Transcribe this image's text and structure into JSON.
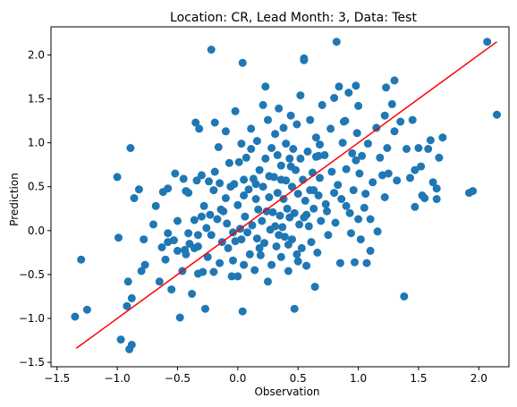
{
  "chart_data": {
    "type": "scatter",
    "title": "Location: CR, Lead Month: 3, Data: Test",
    "xlabel": "Observation",
    "ylabel": "Prediction",
    "xlim": [
      -1.55,
      2.25
    ],
    "ylim": [
      -1.55,
      2.32
    ],
    "xticks": [
      -1.5,
      -1.0,
      -0.5,
      0.0,
      0.5,
      1.0,
      1.5,
      2.0
    ],
    "xtick_labels": [
      "−1.5",
      "−1.0",
      "−0.5",
      "0.0",
      "0.5",
      "1.0",
      "1.5",
      "2.0"
    ],
    "yticks": [
      -1.5,
      -1.0,
      -0.5,
      0.0,
      0.5,
      1.0,
      1.5,
      2.0
    ],
    "ytick_labels": [
      "−1.5",
      "−1.0",
      "−0.5",
      "0.0",
      "0.5",
      "1.0",
      "1.5",
      "2.0"
    ],
    "grid": false,
    "colors": {
      "points": "#1f77b4",
      "line": "#ff0000"
    },
    "fit_line": {
      "x": [
        -1.34,
        2.15
      ],
      "y": [
        -1.34,
        2.15
      ]
    },
    "points": [
      [
        -1.35,
        -0.98
      ],
      [
        -1.3,
        -0.33
      ],
      [
        -1.25,
        -0.9
      ],
      [
        -1.0,
        0.61
      ],
      [
        -0.99,
        -0.08
      ],
      [
        -0.97,
        -1.24
      ],
      [
        -0.92,
        -0.86
      ],
      [
        -0.9,
        -1.35
      ],
      [
        -0.88,
        -1.3
      ],
      [
        -0.91,
        -0.58
      ],
      [
        -0.89,
        0.94
      ],
      [
        -0.88,
        -0.77
      ],
      [
        -0.86,
        0.37
      ],
      [
        -0.82,
        0.47
      ],
      [
        -0.8,
        -0.46
      ],
      [
        -0.78,
        -0.1
      ],
      [
        -0.77,
        -0.39
      ],
      [
        -0.7,
        0.07
      ],
      [
        -0.68,
        0.28
      ],
      [
        -0.65,
        -0.58
      ],
      [
        -0.63,
        -0.19
      ],
      [
        -0.62,
        0.44
      ],
      [
        -0.6,
        -0.33
      ],
      [
        -0.58,
        0.48
      ],
      [
        -0.58,
        -0.03
      ],
      [
        -0.55,
        -0.67
      ],
      [
        -0.53,
        -0.11
      ],
      [
        -0.52,
        0.65
      ],
      [
        -0.5,
        -0.23
      ],
      [
        -0.5,
        0.11
      ],
      [
        -0.48,
        -0.99
      ],
      [
        -0.46,
        -0.46
      ],
      [
        -0.45,
        0.59
      ],
      [
        -0.44,
        -0.22
      ],
      [
        -0.43,
        0.45
      ],
      [
        -0.43,
        -0.27
      ],
      [
        -0.41,
        0.43
      ],
      [
        -0.41,
        -0.03
      ],
      [
        -0.4,
        -0.15
      ],
      [
        -0.38,
        -0.72
      ],
      [
        -0.36,
        0.12
      ],
      [
        -0.35,
        1.23
      ],
      [
        -0.34,
        0.57
      ],
      [
        -0.33,
        -0.18
      ],
      [
        -0.33,
        -0.49
      ],
      [
        -0.32,
        1.16
      ],
      [
        -0.3,
        0.63
      ],
      [
        -0.3,
        0.16
      ],
      [
        -0.29,
        -0.47
      ],
      [
        -0.28,
        0.28
      ],
      [
        -0.27,
        -0.89
      ],
      [
        -0.26,
        0.03
      ],
      [
        -0.25,
        -0.3
      ],
      [
        -0.24,
        0.56
      ],
      [
        -0.23,
        0.18
      ],
      [
        -0.22,
        -0.05
      ],
      [
        -0.22,
        2.06
      ],
      [
        -0.2,
        0.46
      ],
      [
        -0.2,
        -0.47
      ],
      [
        -0.19,
        1.23
      ],
      [
        -0.17,
        0.13
      ],
      [
        -0.16,
        0.95
      ],
      [
        -0.15,
        0.54
      ],
      [
        -0.15,
        -0.37
      ],
      [
        -0.13,
        -0.13
      ],
      [
        -0.12,
        0.22
      ],
      [
        -0.1,
        0.37
      ],
      [
        -0.1,
        1.13
      ],
      [
        -0.09,
        0.08
      ],
      [
        -0.08,
        -0.2
      ],
      [
        -0.07,
        0.77
      ],
      [
        -0.06,
        0.5
      ],
      [
        -0.05,
        -0.52
      ],
      [
        -0.04,
        -0.34
      ],
      [
        -0.03,
        0.53
      ],
      [
        -0.02,
        1.36
      ],
      [
        -0.02,
        -0.12
      ],
      [
        0.0,
        0.29
      ],
      [
        0.0,
        -0.52
      ],
      [
        0.01,
        0.78
      ],
      [
        0.02,
        0.02
      ],
      [
        0.03,
        0.99
      ],
      [
        0.03,
        -0.1
      ],
      [
        0.04,
        1.91
      ],
      [
        0.04,
        -0.92
      ],
      [
        0.05,
        0.58
      ],
      [
        0.05,
        -0.39
      ],
      [
        0.06,
        0.16
      ],
      [
        0.07,
        0.83
      ],
      [
        0.08,
        -0.02
      ],
      [
        0.09,
        0.47
      ],
      [
        0.1,
        -0.27
      ],
      [
        0.11,
        1.16
      ],
      [
        0.12,
        0.06
      ],
      [
        0.13,
        0.59
      ],
      [
        0.14,
        -0.45
      ],
      [
        0.15,
        0.36
      ],
      [
        0.16,
        1.02
      ],
      [
        0.16,
        -0.09
      ],
      [
        0.17,
        0.24
      ],
      [
        0.18,
        0.69
      ],
      [
        0.19,
        -0.28
      ],
      [
        0.2,
        0.11
      ],
      [
        0.21,
        1.43
      ],
      [
        0.21,
        0.5
      ],
      [
        0.22,
        -0.14
      ],
      [
        0.23,
        0.82
      ],
      [
        0.23,
        1.64
      ],
      [
        0.24,
        0.22
      ],
      [
        0.25,
        -0.58
      ],
      [
        0.25,
        1.26
      ],
      [
        0.26,
        0.38
      ],
      [
        0.27,
        0.01
      ],
      [
        0.28,
        0.94
      ],
      [
        0.28,
        -0.39
      ],
      [
        0.29,
        0.21
      ],
      [
        0.3,
        0.61
      ],
      [
        0.31,
        1.1
      ],
      [
        0.32,
        -0.18
      ],
      [
        0.33,
        0.43
      ],
      [
        0.33,
        0.86
      ],
      [
        0.34,
        1.39
      ],
      [
        0.35,
        0.17
      ],
      [
        0.36,
        -0.3
      ],
      [
        0.36,
        0.74
      ],
      [
        0.37,
        0.04
      ],
      [
        0.38,
        1.17
      ],
      [
        0.38,
        0.36
      ],
      [
        0.39,
        -0.07
      ],
      [
        0.4,
        0.57
      ],
      [
        0.4,
        0.99
      ],
      [
        0.41,
        0.25
      ],
      [
        0.42,
        -0.46
      ],
      [
        0.43,
        0.82
      ],
      [
        0.43,
        0.15
      ],
      [
        0.44,
        1.31
      ],
      [
        0.45,
        -0.1
      ],
      [
        0.45,
        0.5
      ],
      [
        0.46,
        0.93
      ],
      [
        0.47,
        0.2
      ],
      [
        0.47,
        -0.89
      ],
      [
        0.48,
        0.69
      ],
      [
        0.49,
        1.21
      ],
      [
        0.49,
        -0.27
      ],
      [
        0.5,
        0.42
      ],
      [
        0.51,
        0.07
      ],
      [
        0.52,
        0.82
      ],
      [
        0.52,
        1.54
      ],
      [
        0.53,
        -0.2
      ],
      [
        0.54,
        0.58
      ],
      [
        0.55,
        1.96
      ],
      [
        0.55,
        0.15
      ],
      [
        0.55,
        1.94
      ],
      [
        0.56,
        0.34
      ],
      [
        0.57,
        -0.4
      ],
      [
        0.58,
        0.9
      ],
      [
        0.59,
        0.05
      ],
      [
        0.6,
        0.46
      ],
      [
        0.6,
        1.26
      ],
      [
        0.61,
        -0.13
      ],
      [
        0.62,
        0.66
      ],
      [
        0.63,
        0.25
      ],
      [
        0.64,
        -0.64
      ],
      [
        0.65,
        0.84
      ],
      [
        0.65,
        1.06
      ],
      [
        0.66,
        -0.25
      ],
      [
        0.67,
        0.4
      ],
      [
        0.68,
        0.6
      ],
      [
        0.69,
        0.11
      ],
      [
        0.7,
        1.43
      ],
      [
        0.72,
        0.86
      ],
      [
        0.73,
        0.3
      ],
      [
        0.75,
        -0.05
      ],
      [
        0.77,
        1.16
      ],
      [
        0.78,
        0.67
      ],
      [
        0.8,
        1.51
      ],
      [
        0.81,
        0.09
      ],
      [
        0.82,
        2.15
      ],
      [
        0.83,
        0.52
      ],
      [
        0.84,
        1.64
      ],
      [
        0.85,
        -0.37
      ],
      [
        0.86,
        0.36
      ],
      [
        0.87,
        1.0
      ],
      [
        0.88,
        1.24
      ],
      [
        0.9,
        0.28
      ],
      [
        0.9,
        0.7
      ],
      [
        0.92,
        1.57
      ],
      [
        0.94,
        -0.03
      ],
      [
        0.95,
        0.88
      ],
      [
        0.96,
        0.46
      ],
      [
        0.97,
        -0.36
      ],
      [
        0.98,
        1.65
      ],
      [
        0.99,
        1.11
      ],
      [
        1.0,
        0.13
      ],
      [
        1.0,
        1.42
      ],
      [
        1.01,
        0.65
      ],
      [
        1.02,
        -0.1
      ],
      [
        1.03,
        0.85
      ],
      [
        1.05,
        0.26
      ],
      [
        1.06,
        0.42
      ],
      [
        1.07,
        -0.37
      ],
      [
        1.08,
        0.99
      ],
      [
        1.1,
        0.13
      ],
      [
        1.12,
        0.55
      ],
      [
        1.15,
        1.17
      ],
      [
        1.16,
        -0.01
      ],
      [
        1.18,
        0.83
      ],
      [
        1.2,
        0.63
      ],
      [
        1.22,
        1.31
      ],
      [
        1.22,
        0.38
      ],
      [
        1.24,
        0.94
      ],
      [
        1.25,
        0.65
      ],
      [
        1.28,
        1.44
      ],
      [
        1.3,
        1.71
      ],
      [
        1.3,
        1.13
      ],
      [
        1.32,
        0.57
      ],
      [
        1.35,
        1.24
      ],
      [
        1.38,
        -0.75
      ],
      [
        1.4,
        0.93
      ],
      [
        1.43,
        0.6
      ],
      [
        1.45,
        1.26
      ],
      [
        1.47,
        0.27
      ],
      [
        1.5,
        0.94
      ],
      [
        1.52,
        0.73
      ],
      [
        1.53,
        0.4
      ],
      [
        1.55,
        0.37
      ],
      [
        1.58,
        0.93
      ],
      [
        1.6,
        1.03
      ],
      [
        1.62,
        0.55
      ],
      [
        1.65,
        0.48
      ],
      [
        1.67,
        0.83
      ],
      [
        1.7,
        1.06
      ],
      [
        1.92,
        0.43
      ],
      [
        1.95,
        0.45
      ],
      [
        2.07,
        2.15
      ],
      [
        2.15,
        1.32
      ],
      [
        1.65,
        0.36
      ],
      [
        1.47,
        0.69
      ],
      [
        1.23,
        1.63
      ],
      [
        0.42,
        -0.16
      ],
      [
        -0.04,
        -0.02
      ],
      [
        0.15,
        0.53
      ],
      [
        0.63,
        0.46
      ],
      [
        0.89,
        1.25
      ],
      [
        0.31,
        0.05
      ],
      [
        -0.58,
        -0.13
      ],
      [
        0.67,
        0.85
      ],
      [
        0.98,
        0.8
      ],
      [
        0.57,
        0.18
      ],
      [
        -0.33,
        -0.05
      ],
      [
        0.11,
        0.93
      ],
      [
        0.36,
        0.58
      ],
      [
        0.74,
        0.22
      ],
      [
        1.1,
        -0.23
      ],
      [
        0.05,
        0.4
      ],
      [
        -0.19,
        0.67
      ],
      [
        0.26,
        0.62
      ],
      [
        0.5,
        -0.35
      ],
      [
        0.8,
        0.43
      ],
      [
        0.44,
        0.73
      ],
      [
        -0.14,
        0.24
      ],
      [
        0.18,
        -0.2
      ],
      [
        0.93,
        0.2
      ],
      [
        0.68,
        0.98
      ],
      [
        0.34,
        -0.05
      ],
      [
        -0.36,
        -0.2
      ]
    ]
  }
}
